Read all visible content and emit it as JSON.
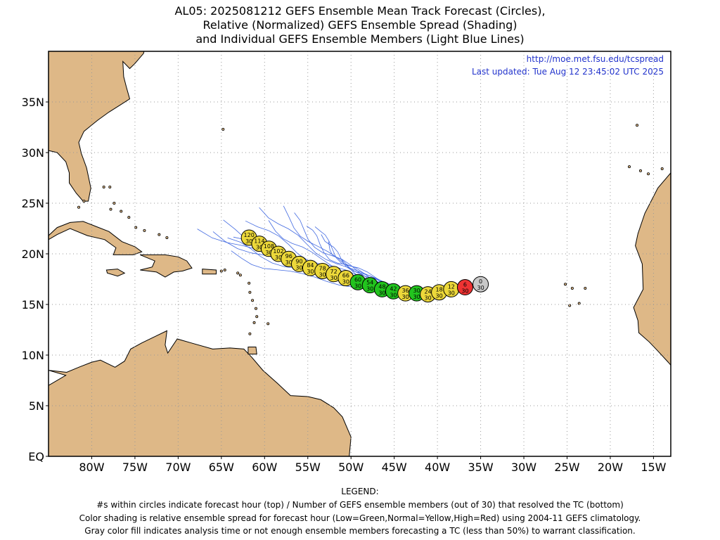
{
  "title": {
    "line1": "AL05: 2025081212 GEFS Ensemble Mean Track Forecast (Circles),",
    "line2": "Relative (Normalized) GEFS Ensemble Spread (Shading)",
    "line3": "and Individual GEFS Ensemble Members (Light Blue Lines)"
  },
  "source_url": "http://moe.met.fsu.edu/tcspread",
  "last_updated": "Last updated: Tue Aug 12 23:45:02 UTC 2025",
  "map": {
    "lon_range": [
      -85,
      -13
    ],
    "lat_range": [
      0,
      40
    ],
    "lon_ticks": [
      "80W",
      "75W",
      "70W",
      "65W",
      "60W",
      "55W",
      "50W",
      "45W",
      "40W",
      "35W",
      "30W",
      "25W",
      "20W",
      "15W"
    ],
    "lat_ticks": [
      "EQ",
      "5N",
      "10N",
      "15N",
      "20N",
      "25N",
      "30N",
      "35N"
    ],
    "colors": {
      "land": "#deb887",
      "ocean": "#ffffff",
      "member_track": "#4169e1",
      "low_spread": "#22c41e",
      "normal_spread": "#ecd83a",
      "high_spread": "#ee3333",
      "analysis": "#c8c8c8",
      "annotation_text": "#2233cc"
    },
    "track": [
      {
        "hour": "0",
        "members": "30",
        "lon": -35.0,
        "lat": 17.0,
        "class": "analysis"
      },
      {
        "hour": "6",
        "members": "30",
        "lon": -36.8,
        "lat": 16.7,
        "class": "high"
      },
      {
        "hour": "12",
        "members": "30",
        "lon": -38.4,
        "lat": 16.5,
        "class": "normal"
      },
      {
        "hour": "18",
        "members": "30",
        "lon": -39.8,
        "lat": 16.2,
        "class": "normal"
      },
      {
        "hour": "24",
        "members": "30",
        "lon": -41.1,
        "lat": 16.0,
        "class": "normal"
      },
      {
        "hour": "30",
        "members": "30",
        "lon": -42.4,
        "lat": 16.1,
        "class": "low"
      },
      {
        "hour": "36",
        "members": "30",
        "lon": -43.7,
        "lat": 16.1,
        "class": "normal"
      },
      {
        "hour": "42",
        "members": "30",
        "lon": -45.1,
        "lat": 16.3,
        "class": "low"
      },
      {
        "hour": "48",
        "members": "30",
        "lon": -46.4,
        "lat": 16.5,
        "class": "low"
      },
      {
        "hour": "54",
        "members": "30",
        "lon": -47.8,
        "lat": 16.9,
        "class": "low"
      },
      {
        "hour": "60",
        "members": "30",
        "lon": -49.2,
        "lat": 17.2,
        "class": "low"
      },
      {
        "hour": "66",
        "members": "30",
        "lon": -50.6,
        "lat": 17.6,
        "class": "normal"
      },
      {
        "hour": "72",
        "members": "30",
        "lon": -52.0,
        "lat": 18.0,
        "class": "normal"
      },
      {
        "hour": "78",
        "members": "30",
        "lon": -53.3,
        "lat": 18.3,
        "class": "normal"
      },
      {
        "hour": "84",
        "members": "30",
        "lon": -54.7,
        "lat": 18.6,
        "class": "normal"
      },
      {
        "hour": "90",
        "members": "30",
        "lon": -56.0,
        "lat": 19.0,
        "class": "normal"
      },
      {
        "hour": "96",
        "members": "30",
        "lon": -57.2,
        "lat": 19.5,
        "class": "normal"
      },
      {
        "hour": "102",
        "members": "30",
        "lon": -58.4,
        "lat": 20.0,
        "class": "normal"
      },
      {
        "hour": "108",
        "members": "30",
        "lon": -59.5,
        "lat": 20.5,
        "class": "normal"
      },
      {
        "hour": "114",
        "members": "30",
        "lon": -60.6,
        "lat": 21.0,
        "class": "normal"
      },
      {
        "hour": "120",
        "members": "30",
        "lon": -61.8,
        "lat": 21.6,
        "class": "normal"
      }
    ],
    "member_endpoints": [
      [
        -67.6,
        22.6
      ],
      [
        -66.0,
        22.0
      ],
      [
        -65.0,
        23.0
      ],
      [
        -64.5,
        21.4
      ],
      [
        -63.6,
        21.8
      ],
      [
        -62.0,
        23.6
      ],
      [
        -60.4,
        24.8
      ],
      [
        -59.5,
        23.2
      ],
      [
        -58.0,
        24.4
      ],
      [
        -56.8,
        23.8
      ],
      [
        -55.2,
        22.8
      ],
      [
        -54.0,
        23.0
      ],
      [
        -53.2,
        22.2
      ],
      [
        -52.5,
        21.2
      ],
      [
        -64.0,
        20.0
      ]
    ],
    "land_polygons": [
      {
        "name": "north-america",
        "points": [
          [
            -85,
            40
          ],
          [
            -73,
            40
          ],
          [
            -73.5,
            41.2
          ],
          [
            -71,
            41.5
          ],
          [
            -70,
            42
          ],
          [
            -70.8,
            43.2
          ],
          [
            -69,
            44
          ],
          [
            -67,
            44.8
          ],
          [
            -65.5,
            45.3
          ],
          [
            -64,
            45
          ],
          [
            -61,
            45.3
          ],
          [
            -60,
            46.5
          ],
          [
            -61,
            47
          ],
          [
            -64,
            47.5
          ],
          [
            -66,
            48
          ],
          [
            -70,
            48
          ],
          [
            -85,
            48
          ]
        ]
      },
      {
        "name": "us-east-coast",
        "points": [
          [
            -85,
            30.2
          ],
          [
            -84,
            30
          ],
          [
            -83,
            29.1
          ],
          [
            -82.6,
            28
          ],
          [
            -82.6,
            27
          ],
          [
            -81.8,
            26
          ],
          [
            -81,
            25.2
          ],
          [
            -80.4,
            25.2
          ],
          [
            -80.1,
            26.5
          ],
          [
            -80.6,
            28.5
          ],
          [
            -81.2,
            29.9
          ],
          [
            -81.5,
            31
          ],
          [
            -80.9,
            32.1
          ],
          [
            -79.3,
            33.2
          ],
          [
            -78,
            34
          ],
          [
            -76.7,
            34.7
          ],
          [
            -75.6,
            35.3
          ],
          [
            -76,
            36.5
          ],
          [
            -76.3,
            37.5
          ],
          [
            -76.4,
            39
          ],
          [
            -75.6,
            38.3
          ],
          [
            -75,
            38.8
          ],
          [
            -74,
            39.8
          ],
          [
            -73.8,
            40.6
          ],
          [
            -73,
            40.8
          ],
          [
            -73,
            40
          ],
          [
            -85,
            40
          ]
        ]
      },
      {
        "name": "gulf-coast-top",
        "points": [
          [
            -85,
            30.2
          ],
          [
            -85,
            40
          ],
          [
            -85,
            30.2
          ]
        ]
      },
      {
        "name": "cuba",
        "points": [
          [
            -85,
            21.8
          ],
          [
            -84,
            22.6
          ],
          [
            -82.5,
            23.1
          ],
          [
            -81,
            23.2
          ],
          [
            -79.5,
            22.7
          ],
          [
            -78,
            22.2
          ],
          [
            -76.5,
            21.2
          ],
          [
            -75,
            20.7
          ],
          [
            -74.2,
            20.2
          ],
          [
            -75.2,
            19.9
          ],
          [
            -77.5,
            19.9
          ],
          [
            -77.2,
            20.6
          ],
          [
            -78.5,
            21.4
          ],
          [
            -80.5,
            21.8
          ],
          [
            -82.5,
            22.5
          ],
          [
            -84,
            21.9
          ],
          [
            -85,
            21.4
          ]
        ]
      },
      {
        "name": "hispaniola",
        "points": [
          [
            -74.4,
            19.9
          ],
          [
            -73,
            19.9
          ],
          [
            -71.5,
            19.9
          ],
          [
            -70,
            19.7
          ],
          [
            -69,
            19.3
          ],
          [
            -68.4,
            18.6
          ],
          [
            -69.5,
            18.3
          ],
          [
            -70.5,
            18.2
          ],
          [
            -71.5,
            17.7
          ],
          [
            -72.5,
            18.2
          ],
          [
            -74.4,
            18.4
          ],
          [
            -73,
            18.7
          ],
          [
            -72.7,
            19.3
          ]
        ]
      },
      {
        "name": "jamaica",
        "points": [
          [
            -78.3,
            18.4
          ],
          [
            -77,
            18.5
          ],
          [
            -76.2,
            18.1
          ],
          [
            -77,
            17.8
          ],
          [
            -78.2,
            18.1
          ]
        ]
      },
      {
        "name": "puerto-rico",
        "points": [
          [
            -67.2,
            18.5
          ],
          [
            -65.6,
            18.4
          ],
          [
            -65.6,
            18.0
          ],
          [
            -67.2,
            18.0
          ]
        ]
      },
      {
        "name": "south-america",
        "points": [
          [
            -85,
            8.5
          ],
          [
            -82.9,
            8.3
          ],
          [
            -81.5,
            8.8
          ],
          [
            -80,
            9.3
          ],
          [
            -79,
            9.5
          ],
          [
            -77.3,
            8.8
          ],
          [
            -76.2,
            9.4
          ],
          [
            -75.5,
            10.6
          ],
          [
            -74.2,
            11.2
          ],
          [
            -72.5,
            11.9
          ],
          [
            -71.3,
            12.4
          ],
          [
            -71.5,
            11
          ],
          [
            -71.2,
            10.2
          ],
          [
            -70.1,
            11.6
          ],
          [
            -68.5,
            11.2
          ],
          [
            -66,
            10.6
          ],
          [
            -64,
            10.7
          ],
          [
            -62.4,
            10.6
          ],
          [
            -61.5,
            9.8
          ],
          [
            -60.2,
            8.5
          ],
          [
            -58.5,
            7.2
          ],
          [
            -57,
            6
          ],
          [
            -55,
            5.9
          ],
          [
            -53.5,
            5.6
          ],
          [
            -52,
            4.8
          ],
          [
            -51,
            3.9
          ],
          [
            -50,
            1.9
          ],
          [
            -50.2,
            0
          ],
          [
            -85,
            0
          ],
          [
            -85,
            7
          ],
          [
            -83,
            8
          ]
        ]
      },
      {
        "name": "trinidad",
        "points": [
          [
            -61.9,
            10.8
          ],
          [
            -61,
            10.8
          ],
          [
            -60.9,
            10.1
          ],
          [
            -61.9,
            10.1
          ]
        ]
      },
      {
        "name": "africa",
        "points": [
          [
            -13,
            28
          ],
          [
            -14.5,
            26.5
          ],
          [
            -16,
            24
          ],
          [
            -16.8,
            22
          ],
          [
            -17.1,
            20.8
          ],
          [
            -16.3,
            19
          ],
          [
            -16.2,
            16.5
          ],
          [
            -17.3,
            14.7
          ],
          [
            -16.8,
            13.4
          ],
          [
            -16.7,
            12.2
          ],
          [
            -15.5,
            11.3
          ],
          [
            -14.6,
            10.5
          ],
          [
            -13.3,
            9.3
          ],
          [
            -13,
            9.0
          ]
        ]
      }
    ],
    "islands": [
      [
        -61.8,
        17.1
      ],
      [
        -61.7,
        16.2
      ],
      [
        -61.4,
        15.4
      ],
      [
        -61.0,
        14.6
      ],
      [
        -60.9,
        13.8
      ],
      [
        -61.2,
        13.2
      ],
      [
        -59.6,
        13.1
      ],
      [
        -61.7,
        12.1
      ],
      [
        -62.8,
        17.9
      ],
      [
        -63.1,
        18.1
      ],
      [
        -77.8,
        24.4
      ],
      [
        -77.4,
        25.0
      ],
      [
        -76.6,
        24.2
      ],
      [
        -75.7,
        23.6
      ],
      [
        -74.9,
        22.6
      ],
      [
        -73.9,
        22.3
      ],
      [
        -72.2,
        21.9
      ],
      [
        -71.3,
        21.6
      ],
      [
        -77.9,
        26.6
      ],
      [
        -78.6,
        26.6
      ],
      [
        -15.6,
        27.9
      ],
      [
        -16.5,
        28.2
      ],
      [
        -14.0,
        28.4
      ],
      [
        -17.8,
        28.6
      ],
      [
        -22.9,
        16.6
      ],
      [
        -24.4,
        16.6
      ],
      [
        -23.6,
        15.1
      ],
      [
        -24.7,
        14.9
      ],
      [
        -25.2,
        17.0
      ],
      [
        -16.9,
        32.7
      ],
      [
        -64.8,
        32.3
      ],
      [
        -80.9,
        25.2
      ],
      [
        -81.5,
        24.6
      ],
      [
        -65.0,
        18.3
      ],
      [
        -64.6,
        18.4
      ]
    ]
  },
  "legend": {
    "heading": "LEGEND:",
    "line1": "#s within circles indicate forecast hour (top) / Number of GEFS ensemble members (out of 30) that resolved the TC (bottom)",
    "line2": "Color shading is relative ensemble spread for forecast hour (Low=Green,Normal=Yellow,High=Red) using 2004-11 GEFS climatology.",
    "line3": "Gray color fill indicates analysis time or not enough ensemble members forecasting a TC (less than 50%) to warrant classification."
  }
}
